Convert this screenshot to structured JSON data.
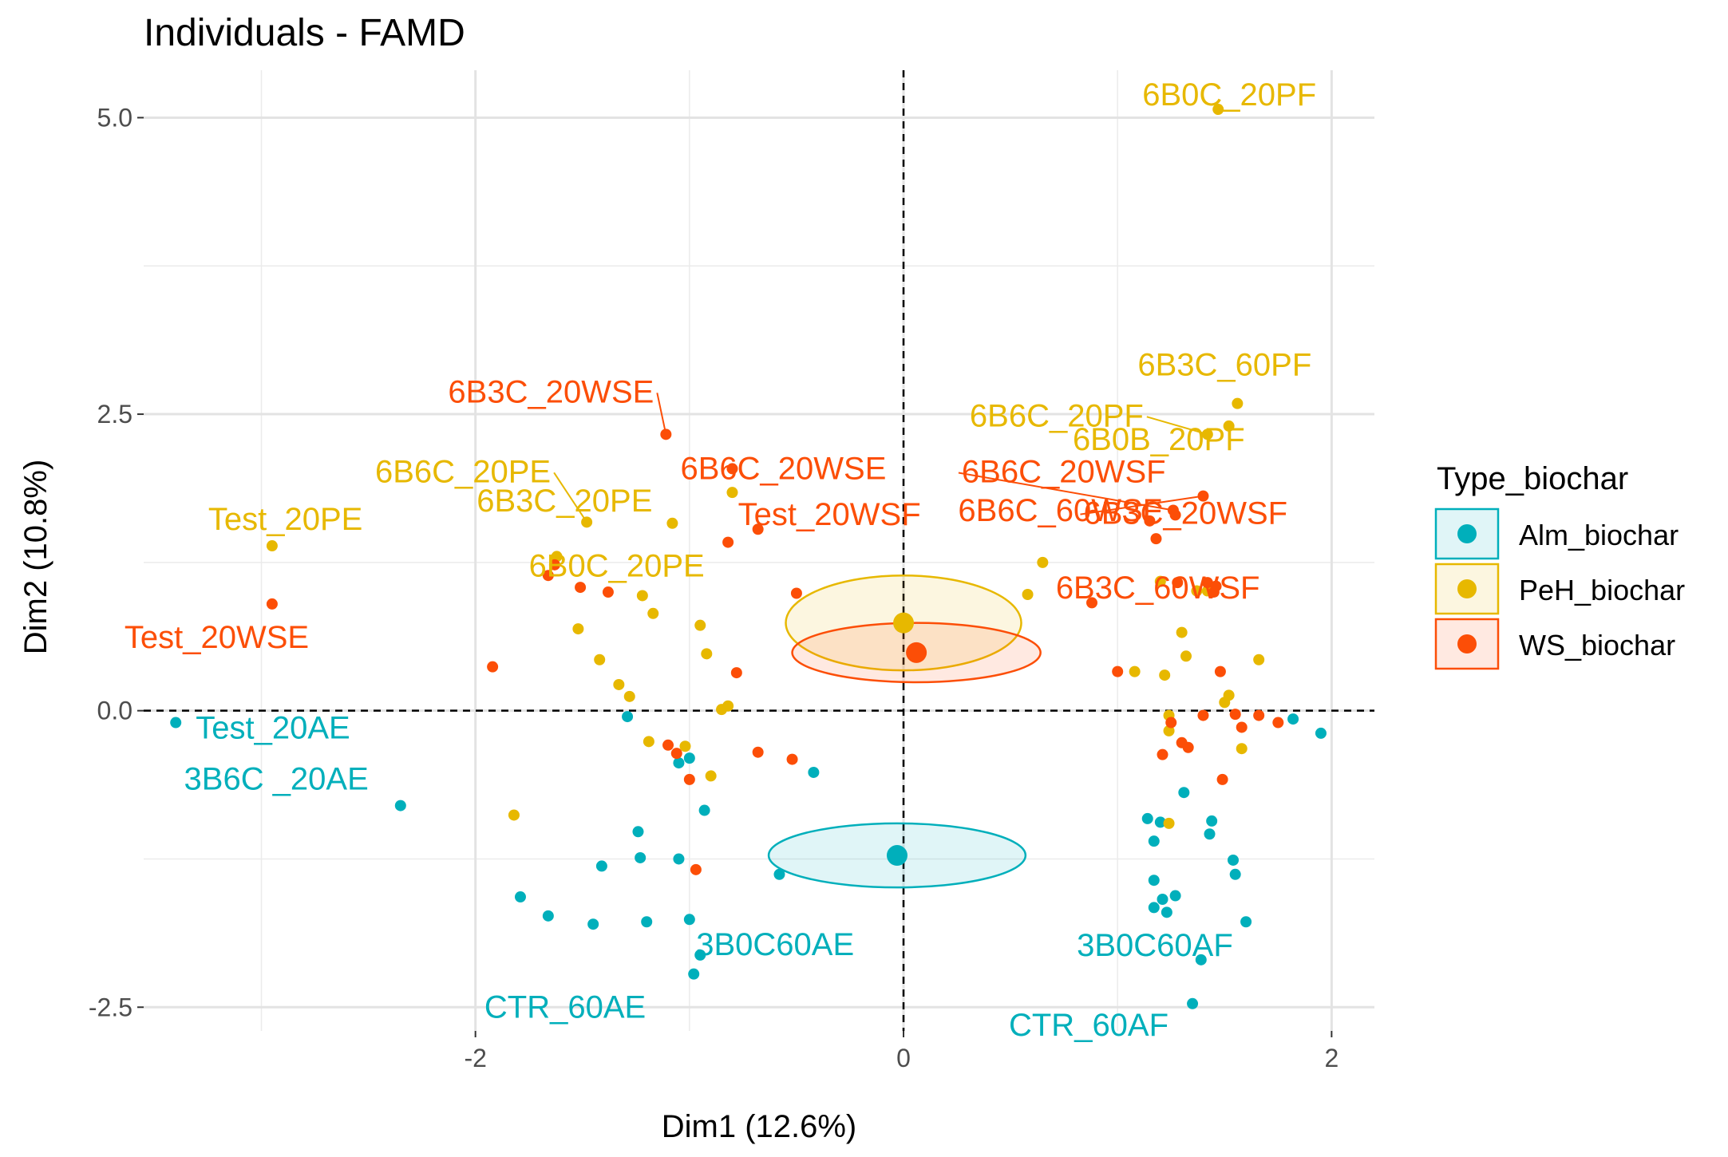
{
  "chart_data": {
    "type": "scatter",
    "title": "Individuals - FAMD",
    "xlabel": "Dim1 (12.6%)",
    "ylabel": "Dim2 (10.8%)",
    "xlim": [
      -3.55,
      2.2
    ],
    "ylim": [
      -2.7,
      5.4
    ],
    "x_ticks": [
      -2,
      0,
      2
    ],
    "x_tick_labels": [
      "-2",
      "0",
      "2"
    ],
    "y_ticks": [
      -2.5,
      0,
      2.5,
      5
    ],
    "y_tick_labels": [
      "-2.5",
      "0.0",
      "2.5",
      "5.0"
    ],
    "grid": true,
    "reference_lines": {
      "x": 0,
      "y": 0,
      "style": "dashed"
    },
    "legend": {
      "title": "Type_biochar",
      "placement": "right",
      "entries": [
        "Alm_biochar",
        "PeH_biochar",
        "WS_biochar"
      ]
    },
    "series": [
      {
        "name": "Alm_biochar",
        "color": "#00AFBB",
        "centroid": [
          -0.03,
          -1.22
        ],
        "ellipse": {
          "cx": -0.03,
          "cy": -1.22,
          "rx": 0.6,
          "ry": 0.27
        },
        "points": [
          [
            -3.4,
            -0.1
          ],
          [
            -2.35,
            -0.8
          ],
          [
            -1.79,
            -1.57
          ],
          [
            -1.66,
            -1.73
          ],
          [
            -1.45,
            -1.8
          ],
          [
            -1.41,
            -1.31
          ],
          [
            -1.29,
            -0.05
          ],
          [
            -1.24,
            -1.02
          ],
          [
            -1.23,
            -1.24
          ],
          [
            -1.2,
            -1.78
          ],
          [
            -1.05,
            -1.25
          ],
          [
            -1.05,
            -0.44
          ],
          [
            -1.0,
            -0.4
          ],
          [
            -1.0,
            -1.76
          ],
          [
            -0.98,
            -2.22
          ],
          [
            -0.95,
            -2.06
          ],
          [
            -0.93,
            -0.84
          ],
          [
            -0.58,
            -1.38
          ],
          [
            -0.42,
            -0.52
          ],
          [
            1.14,
            -0.91
          ],
          [
            1.17,
            -1.1
          ],
          [
            1.17,
            -1.43
          ],
          [
            1.17,
            -1.66
          ],
          [
            1.2,
            -0.94
          ],
          [
            1.21,
            -1.59
          ],
          [
            1.23,
            -1.7
          ],
          [
            1.27,
            -1.56
          ],
          [
            1.31,
            -0.69
          ],
          [
            1.35,
            -2.47
          ],
          [
            1.39,
            -2.1
          ],
          [
            1.43,
            -1.04
          ],
          [
            1.44,
            -0.93
          ],
          [
            1.54,
            -1.26
          ],
          [
            1.55,
            -1.38
          ],
          [
            1.6,
            -1.78
          ],
          [
            1.82,
            -0.07
          ],
          [
            1.95,
            -0.19
          ]
        ],
        "labels": [
          {
            "text": "Test_20AE",
            "x": -3.4,
            "y": -0.1
          },
          {
            "text": "3B6C _20AE",
            "x": -2.35,
            "y": -0.8
          },
          {
            "text": "3B0C60AE",
            "x": -0.95,
            "y": -2.06
          },
          {
            "text": "CTR_60AE",
            "x": -0.98,
            "y": -2.22
          },
          {
            "text": "3B0C60AF",
            "x": 1.39,
            "y": -2.1
          },
          {
            "text": "CTR_60AF",
            "x": 1.35,
            "y": -2.47
          }
        ]
      },
      {
        "name": "PeH_biochar",
        "color": "#E7B800",
        "centroid": [
          0.0,
          0.74
        ],
        "ellipse": {
          "cx": 0.0,
          "cy": 0.74,
          "rx": 0.55,
          "ry": 0.4
        },
        "points": [
          [
            -2.95,
            1.39
          ],
          [
            -1.82,
            -0.88
          ],
          [
            -1.62,
            1.3
          ],
          [
            -1.52,
            0.69
          ],
          [
            -1.48,
            1.59
          ],
          [
            -1.42,
            0.43
          ],
          [
            -1.33,
            0.22
          ],
          [
            -1.28,
            0.12
          ],
          [
            -1.22,
            0.97
          ],
          [
            -1.19,
            -0.26
          ],
          [
            -1.17,
            0.82
          ],
          [
            -1.08,
            1.58
          ],
          [
            -1.02,
            -0.3
          ],
          [
            -0.95,
            0.72
          ],
          [
            -0.92,
            0.48
          ],
          [
            -0.9,
            -0.55
          ],
          [
            -0.85,
            0.01
          ],
          [
            -0.82,
            0.04
          ],
          [
            -0.8,
            1.84
          ],
          [
            0.58,
            0.98
          ],
          [
            0.65,
            1.25
          ],
          [
            1.08,
            0.33
          ],
          [
            1.22,
            0.3
          ],
          [
            1.2,
            1.09
          ],
          [
            1.24,
            -0.17
          ],
          [
            1.24,
            -0.04
          ],
          [
            1.24,
            -0.95
          ],
          [
            1.3,
            0.66
          ],
          [
            1.32,
            0.46
          ],
          [
            1.37,
            1.01
          ],
          [
            1.42,
            1.01
          ],
          [
            1.42,
            2.33
          ],
          [
            1.47,
            5.07
          ],
          [
            1.5,
            0.07
          ],
          [
            1.52,
            0.13
          ],
          [
            1.52,
            2.4
          ],
          [
            1.56,
            2.59
          ],
          [
            1.58,
            -0.32
          ],
          [
            1.66,
            0.43
          ]
        ],
        "labels": [
          {
            "text": "6B0C_20PF",
            "x": 1.47,
            "y": 5.07
          },
          {
            "text": "6B3C_60PF",
            "x": 1.56,
            "y": 2.59
          },
          {
            "text": "6B6C_20PF",
            "x": 1.42,
            "y": 2.33
          },
          {
            "text": "6B0B_20PF",
            "x": 1.52,
            "y": 2.4
          },
          {
            "text": "6B6C_20PE",
            "x": -1.48,
            "y": 1.59
          },
          {
            "text": "6B3C_20PE",
            "x": -1.08,
            "y": 1.58
          },
          {
            "text": "Test_20PE",
            "x": -2.95,
            "y": 1.39
          },
          {
            "text": "6B0C_20PE",
            "x": -1.62,
            "y": 1.3
          }
        ]
      },
      {
        "name": "WS_biochar",
        "color": "#FC4E07",
        "centroid": [
          0.06,
          0.49
        ],
        "ellipse": {
          "cx": 0.06,
          "cy": 0.49,
          "rx": 0.58,
          "ry": 0.25
        },
        "points": [
          [
            -2.95,
            0.9
          ],
          [
            -1.92,
            0.37
          ],
          [
            -1.66,
            1.14
          ],
          [
            -1.63,
            1.23
          ],
          [
            -1.51,
            1.04
          ],
          [
            -1.38,
            1.0
          ],
          [
            -1.11,
            2.33
          ],
          [
            -1.1,
            -0.29
          ],
          [
            -1.06,
            -0.36
          ],
          [
            -1.0,
            -0.58
          ],
          [
            -0.97,
            -1.34
          ],
          [
            -0.82,
            1.42
          ],
          [
            -0.8,
            2.04
          ],
          [
            -0.78,
            0.32
          ],
          [
            -0.68,
            -0.35
          ],
          [
            -0.68,
            1.53
          ],
          [
            -0.52,
            -0.41
          ],
          [
            -0.5,
            0.99
          ],
          [
            0.88,
            0.91
          ],
          [
            1.0,
            0.33
          ],
          [
            1.15,
            1.6
          ],
          [
            1.18,
            1.45
          ],
          [
            1.21,
            -0.37
          ],
          [
            1.25,
            -0.1
          ],
          [
            1.26,
            1.69
          ],
          [
            1.27,
            1.65
          ],
          [
            1.28,
            1.08
          ],
          [
            1.3,
            -0.27
          ],
          [
            1.33,
            -0.31
          ],
          [
            1.4,
            -0.04
          ],
          [
            1.4,
            1.81
          ],
          [
            1.42,
            1.08
          ],
          [
            1.45,
            1.0
          ],
          [
            1.46,
            1.05
          ],
          [
            1.48,
            0.33
          ],
          [
            1.49,
            -0.58
          ],
          [
            1.55,
            -0.03
          ],
          [
            1.58,
            -0.14
          ],
          [
            1.66,
            -0.04
          ],
          [
            1.75,
            -0.1
          ]
        ],
        "labels": [
          {
            "text": "6B3C_20WSE",
            "x": -1.11,
            "y": 2.33
          },
          {
            "text": "6B6C_20WSE",
            "x": -0.8,
            "y": 2.04
          },
          {
            "text": "Test_20WSF",
            "x": -0.68,
            "y": 1.53
          },
          {
            "text": "Test_20WSE",
            "x": -2.95,
            "y": 0.9
          },
          {
            "text": "6B6C_20WSF",
            "x": 1.26,
            "y": 1.69
          },
          {
            "text": "6B3C_20WSF",
            "x": 1.4,
            "y": 1.81
          },
          {
            "text": "6B6C_60WSF",
            "x": 1.15,
            "y": 1.6
          },
          {
            "text": "6B3C_60WSF",
            "x": 1.42,
            "y": 1.08
          }
        ]
      }
    ]
  }
}
